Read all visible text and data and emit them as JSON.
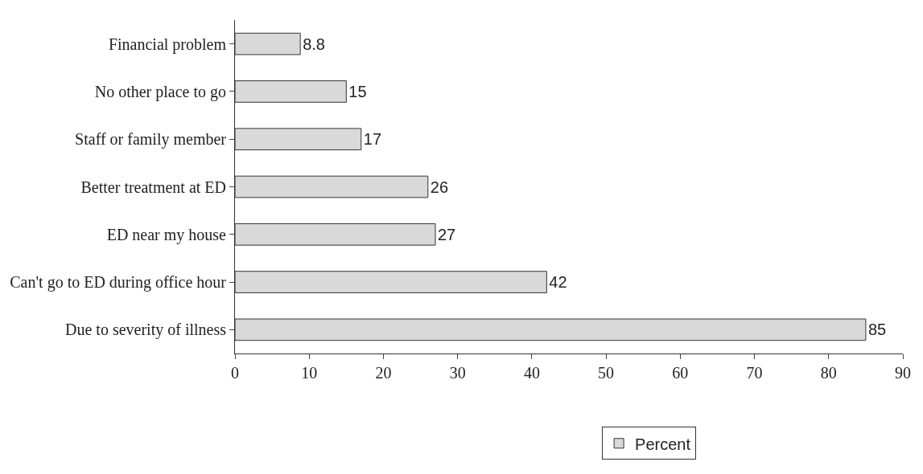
{
  "chart_data": {
    "type": "bar",
    "orientation": "horizontal",
    "categories": [
      "Financial problem",
      "No other place to go",
      "Staff or family member",
      "Better treatment at ED",
      "ED near my house",
      "Can't go to ED during office hour",
      "Due to severity of illness"
    ],
    "series": [
      {
        "name": "Percent",
        "color": "#d9d9d9",
        "values": [
          8.8,
          15,
          17,
          26,
          27,
          42,
          85
        ]
      }
    ],
    "data_labels": true,
    "xlim": [
      0,
      90
    ],
    "xticks": [
      0,
      10,
      20,
      30,
      40,
      50,
      60,
      70,
      80,
      90
    ],
    "legend": "bottom"
  }
}
